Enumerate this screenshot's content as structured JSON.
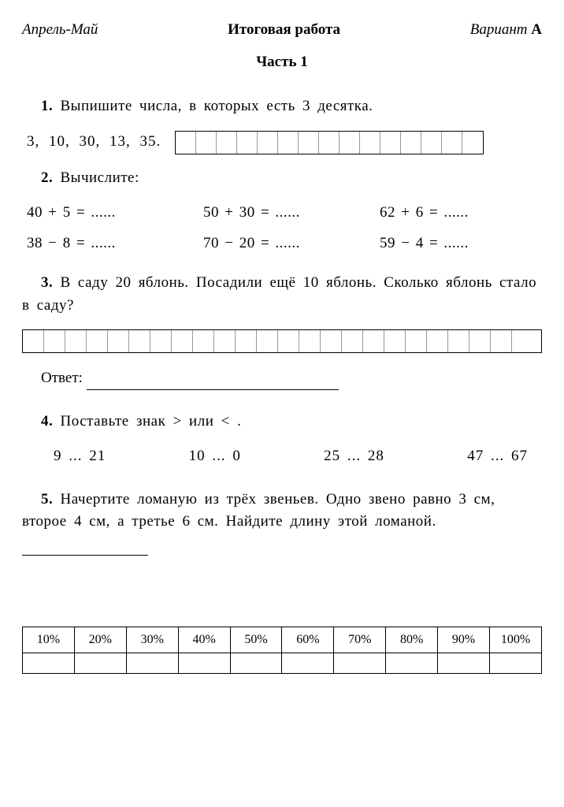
{
  "header": {
    "period": "Апрель-Май",
    "title": "Итоговая работа",
    "variant_label": "Вариант",
    "variant": "А"
  },
  "part_title": "Часть  1",
  "q1": {
    "num": "1.",
    "text": "Выпишите  числа,  в  которых  есть  3  десятка.",
    "numbers": "3,  10,  30,  13,  35.",
    "grid_cells": 15
  },
  "q2": {
    "num": "2.",
    "text": "Вычислите:",
    "eqs": [
      "40 + 5 = ......",
      "50 + 30 = ......",
      "62 + 6 = ......",
      "38 − 8 = ......",
      "70 − 20 = ......",
      "59 − 4 = ......"
    ]
  },
  "q3": {
    "num": "3.",
    "text": "В  саду  20  яблонь.  Посадили  ещё  10  яблонь.  Сколько  яблонь  стало  в  саду?",
    "grid_cells": 24,
    "answer_label": "Ответ:"
  },
  "q4": {
    "num": "4.",
    "text": "Поставьте  знак  >  или  <  .",
    "pairs": [
      "9 ... 21",
      "10 ... 0",
      "25 ... 28",
      "47 ... 67"
    ]
  },
  "q5": {
    "num": "5.",
    "text": "Начертите  ломаную  из  трёх  звеньев.  Одно  звено  равно  3  см,  второе  4  см,  а  третье  6  см.  Найдите  длину  этой  ломаной."
  },
  "footer": {
    "percents": [
      "10%",
      "20%",
      "30%",
      "40%",
      "50%",
      "60%",
      "70%",
      "80%",
      "90%",
      "100%"
    ]
  }
}
